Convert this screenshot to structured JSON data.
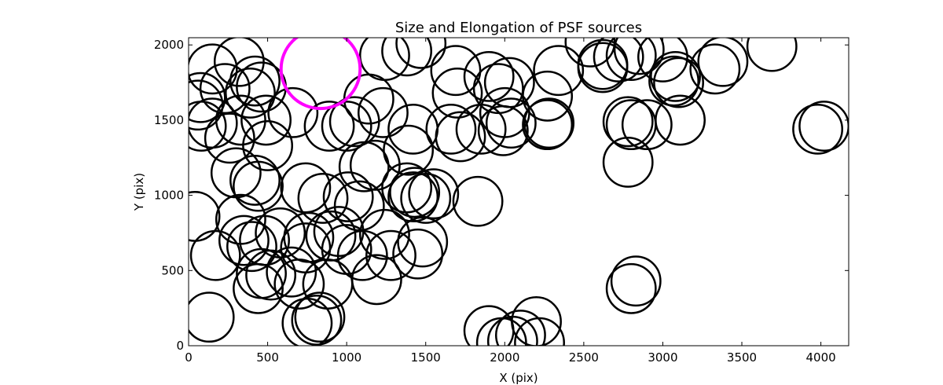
{
  "chart_data": {
    "type": "scatter",
    "title": "Size and Elongation of PSF sources",
    "xlabel": "X (pix)",
    "ylabel": "Y (pix)",
    "xlim": [
      0,
      4176
    ],
    "ylim": [
      0,
      2048
    ],
    "xticks": [
      0,
      500,
      1000,
      1500,
      2000,
      2500,
      3000,
      3500,
      4000
    ],
    "yticks": [
      0,
      500,
      1000,
      1500,
      2000
    ],
    "grid": false,
    "marker": "open-circle",
    "colors": {
      "default": "#000000",
      "highlight": "#ff00ff"
    },
    "highlight": {
      "x": 835,
      "y": 1840,
      "r": 250
    },
    "r": 155,
    "points": [
      [
        75,
        1650
      ],
      [
        150,
        1840
      ],
      [
        320,
        1890
      ],
      [
        60,
        1600
      ],
      [
        230,
        1710
      ],
      [
        390,
        1680
      ],
      [
        460,
        1720
      ],
      [
        420,
        1760
      ],
      [
        80,
        1460
      ],
      [
        150,
        1480
      ],
      [
        260,
        1380
      ],
      [
        330,
        1500
      ],
      [
        490,
        1500
      ],
      [
        660,
        1550
      ],
      [
        500,
        1330
      ],
      [
        1140,
        1640
      ],
      [
        1230,
        1550
      ],
      [
        1240,
        1930
      ],
      [
        1380,
        1960
      ],
      [
        1470,
        2010
      ],
      [
        1690,
        1830
      ],
      [
        1700,
        1680
      ],
      [
        1900,
        1790
      ],
      [
        1960,
        1710
      ],
      [
        2030,
        1750
      ],
      [
        2000,
        1550
      ],
      [
        2040,
        1480
      ],
      [
        1990,
        1430
      ],
      [
        1850,
        1440
      ],
      [
        1720,
        1390
      ],
      [
        1660,
        1440
      ],
      [
        1420,
        1440
      ],
      [
        1390,
        1300
      ],
      [
        1050,
        1490
      ],
      [
        1000,
        1460
      ],
      [
        890,
        1460
      ],
      [
        1110,
        1190
      ],
      [
        1180,
        1200
      ],
      [
        300,
        1150
      ],
      [
        420,
        1100
      ],
      [
        440,
        1060
      ],
      [
        740,
        1050
      ],
      [
        850,
        980
      ],
      [
        1010,
        990
      ],
      [
        1080,
        930
      ],
      [
        1380,
        1050
      ],
      [
        1430,
        1020
      ],
      [
        1420,
        990
      ],
      [
        1500,
        980
      ],
      [
        1550,
        1010
      ],
      [
        1830,
        960
      ],
      [
        40,
        860
      ],
      [
        330,
        840
      ],
      [
        350,
        700
      ],
      [
        400,
        660
      ],
      [
        480,
        700
      ],
      [
        580,
        750
      ],
      [
        760,
        720
      ],
      [
        740,
        650
      ],
      [
        900,
        730
      ],
      [
        950,
        760
      ],
      [
        1000,
        640
      ],
      [
        1100,
        600
      ],
      [
        1240,
        740
      ],
      [
        1280,
        600
      ],
      [
        1480,
        690
      ],
      [
        1450,
        610
      ],
      [
        170,
        600
      ],
      [
        460,
        480
      ],
      [
        520,
        470
      ],
      [
        650,
        490
      ],
      [
        700,
        410
      ],
      [
        440,
        380
      ],
      [
        880,
        410
      ],
      [
        1190,
        440
      ],
      [
        130,
        190
      ],
      [
        750,
        150
      ],
      [
        830,
        190
      ],
      [
        810,
        170
      ],
      [
        1900,
        100
      ],
      [
        1980,
        20
      ],
      [
        2050,
        30
      ],
      [
        2100,
        70
      ],
      [
        2200,
        160
      ],
      [
        2220,
        20
      ],
      [
        2270,
        1470
      ],
      [
        2280,
        1480
      ],
      [
        2270,
        1660
      ],
      [
        2340,
        1830
      ],
      [
        2540,
        2020
      ],
      [
        2620,
        1850
      ],
      [
        2620,
        1870
      ],
      [
        2720,
        1920
      ],
      [
        2800,
        1930
      ],
      [
        2850,
        1970
      ],
      [
        3000,
        1920
      ],
      [
        3080,
        1790
      ],
      [
        3100,
        1750
      ],
      [
        3070,
        1760
      ],
      [
        3110,
        1500
      ],
      [
        3330,
        1840
      ],
      [
        3380,
        1890
      ],
      [
        3690,
        1990
      ],
      [
        2780,
        1490
      ],
      [
        2800,
        1470
      ],
      [
        2900,
        1470
      ],
      [
        2780,
        1220
      ],
      [
        2800,
        380
      ],
      [
        2830,
        430
      ],
      [
        3980,
        1440
      ],
      [
        4020,
        1460
      ]
    ]
  }
}
